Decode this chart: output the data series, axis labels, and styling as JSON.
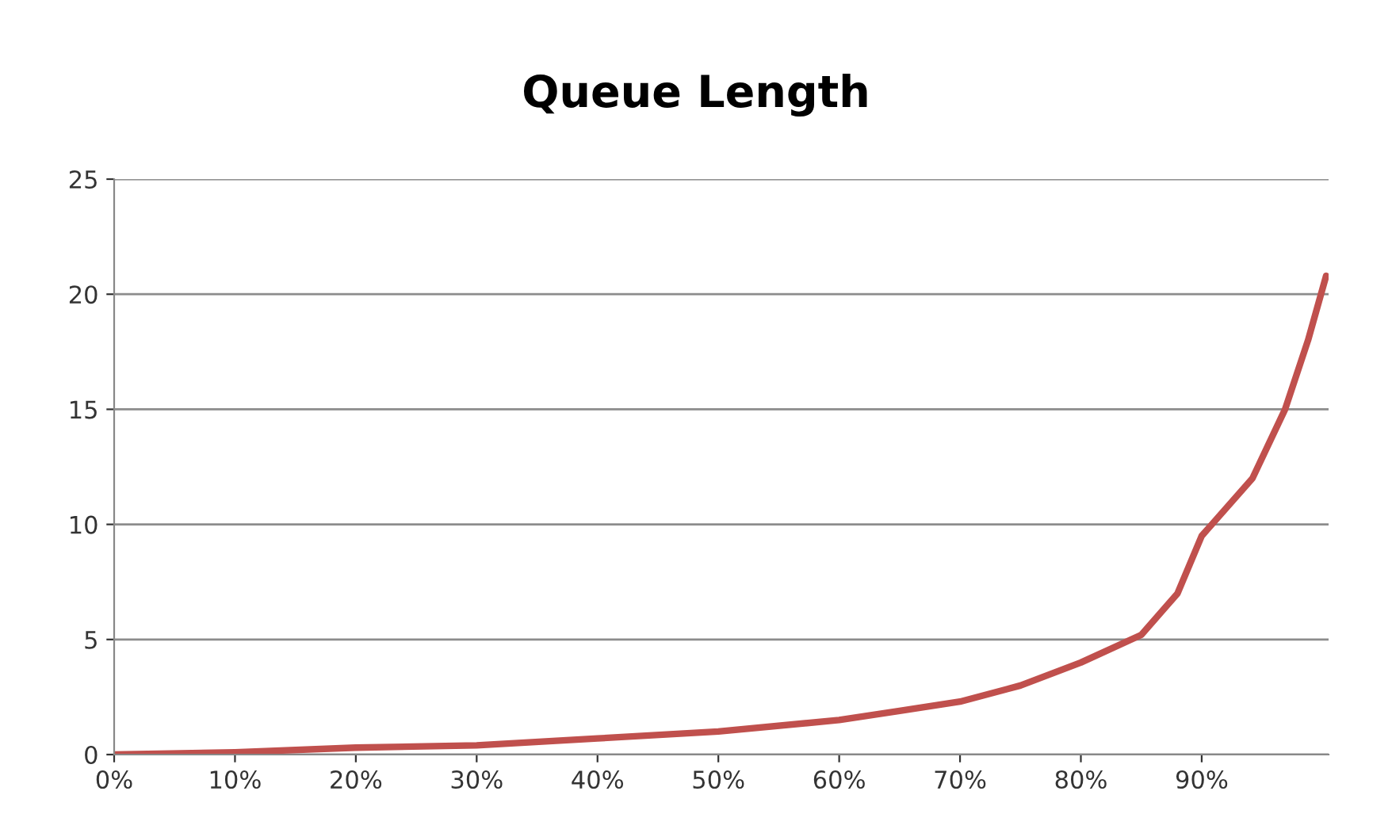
{
  "chart_data": {
    "type": "line",
    "title": "Queue Length",
    "x": [
      0,
      10,
      20,
      30,
      40,
      50,
      60,
      65,
      70,
      75,
      80,
      85,
      88,
      90,
      94.2,
      96.9,
      98.8,
      100.3
    ],
    "series": [
      {
        "color": "#c0504d",
        "values": [
          0,
          0.1,
          0.3,
          0.4,
          0.7,
          1.0,
          1.5,
          1.9,
          2.3,
          3.0,
          4.0,
          5.2,
          7,
          9.5,
          12,
          15,
          18,
          20.8
        ]
      }
    ],
    "xlim": [
      0,
      100.5
    ],
    "xticks": [
      {
        "value": 0,
        "label": "0%"
      },
      {
        "value": 10,
        "label": "10%"
      },
      {
        "value": 20,
        "label": "20%"
      },
      {
        "value": 30,
        "label": "30%"
      },
      {
        "value": 40,
        "label": "40%"
      },
      {
        "value": 50,
        "label": "50%"
      },
      {
        "value": 60,
        "label": "60%"
      },
      {
        "value": 70,
        "label": "70%"
      },
      {
        "value": 80,
        "label": "80%"
      },
      {
        "value": 90,
        "label": "90%"
      }
    ],
    "ylim": [
      0,
      25
    ],
    "yticks": [
      0,
      5,
      10,
      15,
      20,
      25
    ],
    "grid": "y",
    "legend": false,
    "marker": "none",
    "line_style": "solid"
  }
}
